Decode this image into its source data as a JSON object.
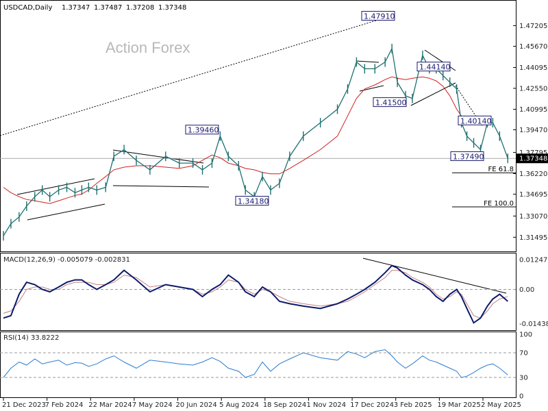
{
  "chart_data": {
    "type": "candlestick",
    "header": {
      "symbol": "USDCAD,Daily",
      "ohlc": [
        "1.37347",
        "1.37487",
        "1.37208",
        "1.37348"
      ]
    },
    "watermark": "Action Forex",
    "price_axis": {
      "ticks": [
        "1.47205",
        "1.45670",
        "1.44095",
        "1.42550",
        "1.40995",
        "1.39470",
        "1.37795",
        "1.36220",
        "1.34695",
        "1.33070",
        "1.31495"
      ],
      "current_price": "1.37348",
      "ylim": [
        1.308,
        1.487
      ]
    },
    "date_axis": {
      "ticks": [
        "21 Dec 2023",
        "7 Feb 2024",
        "22 Mar 2024",
        "7 May 2024",
        "20 Jun 2024",
        "5 Aug 2024",
        "18 Sep 2024",
        "1 Nov 2024",
        "17 Dec 2024",
        "3 Feb 2025",
        "19 Mar 2025",
        "2 May 2025"
      ]
    },
    "annotations": [
      {
        "label": "1.47910",
        "price": 1.4791
      },
      {
        "label": "1.44140",
        "price": 1.4414
      },
      {
        "label": "1.41500",
        "price": 1.415
      },
      {
        "label": "1.39460",
        "price": 1.3946
      },
      {
        "label": "1.40140",
        "price": 1.4014
      },
      {
        "label": "1.37490",
        "price": 1.3749
      },
      {
        "label": "1.34180",
        "price": 1.3418
      }
    ],
    "fib_levels": [
      {
        "label": "FE 61.8",
        "price": 1.3628
      },
      {
        "label": "FE 100.0",
        "price": 1.3375
      }
    ],
    "price_series": {
      "x_positions": [
        0,
        11,
        23,
        34,
        46,
        57,
        68,
        81,
        93,
        105,
        115,
        125,
        137,
        150,
        162,
        177,
        195,
        215,
        238,
        258,
        278,
        292,
        306,
        318,
        330,
        345,
        355,
        368,
        380,
        392,
        405,
        420,
        440,
        465,
        490,
        505,
        518,
        530,
        545,
        560,
        570,
        578,
        590,
        600,
        615,
        625,
        635,
        645,
        655,
        665,
        672,
        680,
        690,
        700,
        710,
        718,
        728,
        740
      ],
      "close": [
        1.316,
        1.325,
        1.33,
        1.338,
        1.345,
        1.35,
        1.345,
        1.35,
        1.352,
        1.348,
        1.35,
        1.352,
        1.35,
        1.352,
        1.375,
        1.38,
        1.372,
        1.365,
        1.375,
        1.37,
        1.37,
        1.365,
        1.37,
        1.39,
        1.375,
        1.368,
        1.35,
        1.345,
        1.36,
        1.35,
        1.355,
        1.375,
        1.39,
        1.4,
        1.41,
        1.425,
        1.445,
        1.44,
        1.44,
        1.445,
        1.455,
        1.43,
        1.42,
        1.418,
        1.45,
        1.44,
        1.44,
        1.435,
        1.43,
        1.425,
        1.4,
        1.39,
        1.385,
        1.38,
        1.4,
        1.4,
        1.39,
        1.3735
      ],
      "moving_average": [
        1.352,
        1.348,
        1.345,
        1.343,
        1.342,
        1.341,
        1.34,
        1.342,
        1.344,
        1.346,
        1.347,
        1.35,
        1.355,
        1.36,
        1.365,
        1.367,
        1.368,
        1.368,
        1.367,
        1.366,
        1.368,
        1.372,
        1.376,
        1.374,
        1.37,
        1.368,
        1.366,
        1.365,
        1.363,
        1.362,
        1.362,
        1.366,
        1.372,
        1.38,
        1.39,
        1.405,
        1.418,
        1.425,
        1.428,
        1.432,
        1.434,
        1.433,
        1.432,
        1.433,
        1.434,
        1.433,
        1.431,
        1.427,
        1.42,
        1.41,
        1.405,
        1.4
      ]
    },
    "macd": {
      "label": "MACD(12,26,9) -0.005079 -0.002831",
      "ticks": [
        "0.012472",
        "0.00",
        "-0.014389"
      ],
      "ylim": [
        -0.0165,
        0.0145
      ],
      "macd_line": [
        -0.012,
        -0.011,
        -0.002,
        0.003,
        0.002,
        0.0,
        -0.001,
        0.001,
        0.003,
        0.004,
        0.004,
        0.002,
        0.0,
        0.002,
        0.004,
        0.008,
        0.004,
        -0.001,
        0.002,
        0.001,
        0.0,
        -0.003,
        0.0,
        0.002,
        0.006,
        0.003,
        -0.001,
        -0.003,
        0.001,
        -0.001,
        -0.005,
        -0.006,
        -0.007,
        -0.008,
        -0.006,
        -0.004,
        -0.002,
        0.0,
        0.003,
        0.007,
        0.01,
        0.009,
        0.006,
        0.004,
        0.002,
        0.0,
        -0.003,
        -0.005,
        -0.002,
        0.0,
        -0.003,
        -0.008,
        -0.014,
        -0.012,
        -0.007,
        -0.004,
        -0.002,
        -0.005
      ],
      "signal_line": [
        -0.01,
        -0.009,
        -0.005,
        0.0,
        0.001,
        0.001,
        0.0,
        0.0,
        0.002,
        0.003,
        0.003,
        0.003,
        0.002,
        0.002,
        0.003,
        0.006,
        0.005,
        0.001,
        0.002,
        0.001,
        0.0,
        -0.002,
        -0.001,
        0.001,
        0.004,
        0.003,
        0.0,
        -0.002,
        0.0,
        -0.001,
        -0.003,
        -0.005,
        -0.006,
        -0.007,
        -0.006,
        -0.005,
        -0.003,
        -0.001,
        0.002,
        0.005,
        0.008,
        0.008,
        0.007,
        0.005,
        0.003,
        0.001,
        -0.002,
        -0.004,
        -0.003,
        -0.001,
        -0.002,
        -0.006,
        -0.011,
        -0.012,
        -0.009,
        -0.006,
        -0.004,
        -0.003
      ]
    },
    "rsi": {
      "label": "RSI(14) 33.8222",
      "ticks": [
        "100",
        "70",
        "30",
        "0"
      ],
      "ylim": [
        0,
        100
      ],
      "levels": [
        70,
        30
      ],
      "values": [
        30,
        45,
        55,
        50,
        60,
        52,
        55,
        58,
        50,
        54,
        53,
        48,
        52,
        60,
        65,
        55,
        45,
        58,
        55,
        52,
        50,
        55,
        62,
        56,
        45,
        40,
        30,
        35,
        55,
        40,
        52,
        60,
        70,
        62,
        58,
        72,
        68,
        62,
        72,
        75,
        65,
        55,
        45,
        52,
        65,
        58,
        55,
        50,
        45,
        40,
        30,
        32,
        38,
        45,
        50,
        52,
        45,
        34
      ]
    }
  }
}
